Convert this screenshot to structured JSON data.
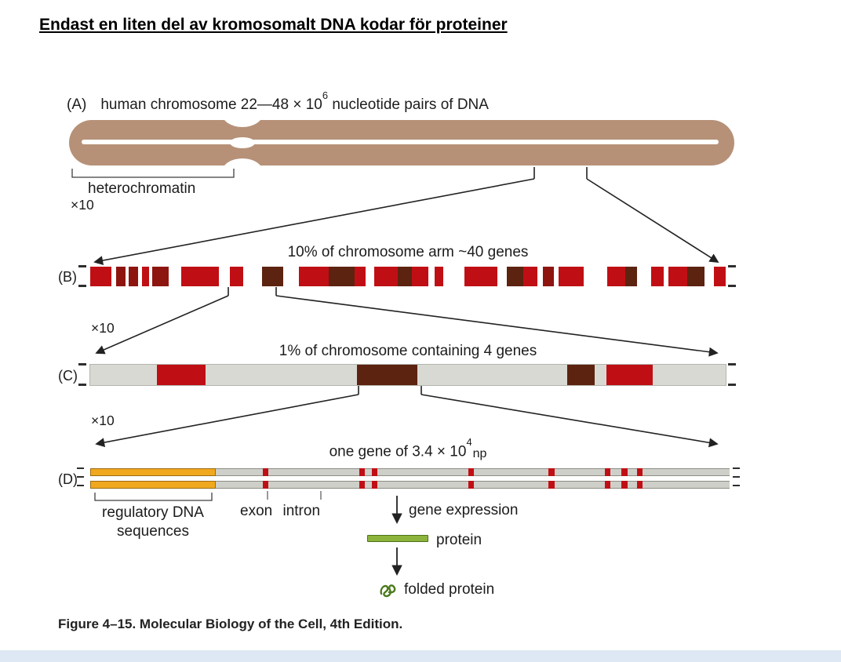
{
  "page": {
    "title": "Endast en liten del av kromosomalt DNA kodar för proteiner",
    "caption": "Figure 4–15. Molecular Biology of the Cell, 4th Edition."
  },
  "zoom": {
    "label": "×10"
  },
  "panelA": {
    "label": "(A)",
    "heading_pre": "human chromosome 22—48 × 10",
    "heading_sup": "6",
    "heading_post": " nucleotide pairs of DNA",
    "heterochromatin": "heterochromatin"
  },
  "panelB": {
    "label": "(B)",
    "title": "10% of chromosome arm ~40 genes",
    "segments": [
      [
        "red",
        18
      ],
      [
        "white",
        4
      ],
      [
        "dark",
        8
      ],
      [
        "white",
        3
      ],
      [
        "dark",
        8
      ],
      [
        "white",
        3
      ],
      [
        "red",
        6
      ],
      [
        "white",
        3
      ],
      [
        "dark",
        14
      ],
      [
        "white",
        11
      ],
      [
        "red",
        32
      ],
      [
        "white",
        9
      ],
      [
        "red",
        12
      ],
      [
        "white",
        16
      ],
      [
        "brown",
        18
      ],
      [
        "white",
        13
      ],
      [
        "red",
        26
      ],
      [
        "brown",
        22
      ],
      [
        "red",
        9
      ],
      [
        "white",
        8
      ],
      [
        "red",
        20
      ],
      [
        "brown",
        12
      ],
      [
        "red",
        14
      ],
      [
        "white",
        5
      ],
      [
        "red",
        8
      ],
      [
        "white",
        18
      ],
      [
        "red",
        28
      ],
      [
        "white",
        8
      ],
      [
        "brown",
        14
      ],
      [
        "red",
        12
      ],
      [
        "white",
        5
      ],
      [
        "dark",
        9
      ],
      [
        "white",
        4
      ],
      [
        "red",
        22
      ],
      [
        "white",
        20
      ],
      [
        "red",
        15
      ],
      [
        "brown",
        10
      ],
      [
        "white",
        12
      ],
      [
        "red",
        11
      ],
      [
        "white",
        4
      ],
      [
        "red",
        16
      ],
      [
        "brown",
        15
      ],
      [
        "white",
        8
      ],
      [
        "red",
        10
      ]
    ]
  },
  "panelC": {
    "label": "(C)",
    "title": "1% of chromosome containing 4 genes",
    "segments": [
      [
        "gray",
        85
      ],
      [
        "red",
        62
      ],
      [
        "gray",
        193
      ],
      [
        "brown",
        77
      ],
      [
        "gray",
        191
      ],
      [
        "brown",
        35
      ],
      [
        "gray",
        15
      ],
      [
        "red",
        59
      ],
      [
        "gray",
        93
      ]
    ]
  },
  "panelD": {
    "label": "(D)",
    "title_pre": "one gene of 3.4 × 10",
    "title_sup": "4",
    "title_post": "np",
    "regulatory_line1": "regulatory DNA",
    "regulatory_line2": "sequences",
    "exon_intron": "exon intron",
    "gene_expression": "gene expression",
    "protein": "protein",
    "folded_protein": "folded protein",
    "regulatory_width_pct": 19.6,
    "exon_positions_pct": [
      27.0,
      42.1,
      44.0,
      59.1,
      71.7,
      80.5,
      83.1,
      85.5
    ],
    "exon_width_pct": 0.9
  },
  "colors": {
    "red": "#c00f14",
    "dark": "#8e1410",
    "brown": "#5c2310",
    "white": "#ffffff",
    "gray": "#d9d9d3",
    "chromosome": "#b69178",
    "orange": "#f0a81f",
    "strip_gray": "#cfcfc9",
    "protein_green": "#8cb43c",
    "folded_green": "#4c7a1d"
  }
}
